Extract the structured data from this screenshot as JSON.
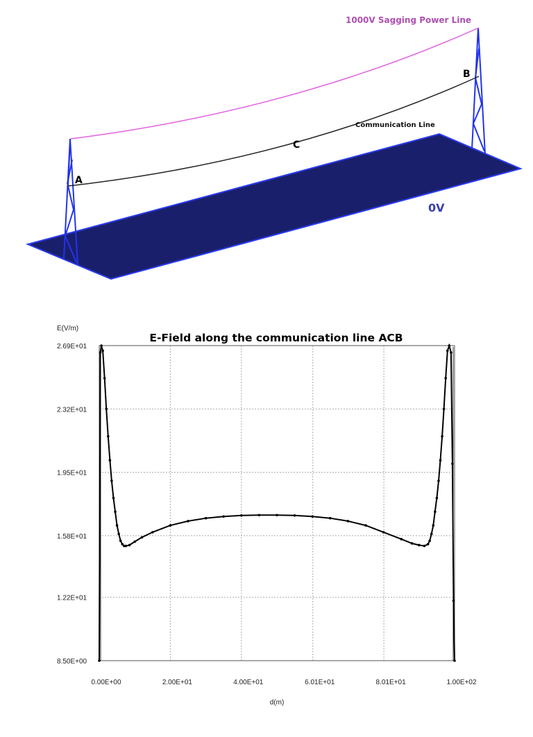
{
  "scene": {
    "power_line_label": "1000V Sagging Power Line",
    "communication_line_label": "Communication Line",
    "point_a": "A",
    "point_b": "B",
    "point_c": "C",
    "ground_label": "0V",
    "colors": {
      "power_line": "#e060e0",
      "power_label": "#b050b0",
      "communication_line": "#222222",
      "tower": "#2233ee",
      "ground_plane": "#1a1f6b",
      "ground_edge": "#2a3cf0",
      "ground_label": "#3a3fb0"
    }
  },
  "chart_data": {
    "type": "line",
    "title": "E-Field along the communication line ACB",
    "xlabel": "d(m)",
    "ylabel": "E(V/m)",
    "x_ticks": [
      "0.00E+00",
      "2.00E+01",
      "4.00E+01",
      "6.01E+01",
      "8.01E+01",
      "1.00E+02"
    ],
    "x_tick_values": [
      0,
      20,
      40,
      60.1,
      80.1,
      100
    ],
    "y_ticks": [
      "2.69E+01",
      "2.32E+01",
      "1.95E+01",
      "1.58E+01",
      "1.22E+01",
      "8.50E+00"
    ],
    "y_tick_values": [
      26.9,
      23.2,
      19.5,
      15.8,
      12.2,
      8.5
    ],
    "xlim": [
      0,
      100
    ],
    "ylim": [
      8.5,
      26.9
    ],
    "grid": true,
    "legend": "none",
    "series": [
      {
        "name": "E-Field",
        "x": [
          0,
          0.3,
          0.6,
          1.0,
          1.5,
          2.0,
          2.5,
          3.0,
          3.5,
          4.0,
          4.5,
          5.0,
          5.5,
          6.0,
          6.5,
          7.0,
          7.5,
          8.5,
          10,
          12,
          15,
          20,
          25,
          30,
          35,
          40,
          45,
          50,
          55,
          60,
          65,
          70,
          75,
          80,
          85,
          88,
          90,
          91.5,
          92.5,
          93,
          93.5,
          94,
          94.5,
          95,
          95.5,
          96,
          96.5,
          97,
          97.5,
          98,
          98.5,
          99.0,
          99.4,
          99.7,
          100
        ],
        "y": [
          8.5,
          26.5,
          26.9,
          26.6,
          25.0,
          23.2,
          21.6,
          20.2,
          19.0,
          18.0,
          17.2,
          16.4,
          15.9,
          15.5,
          15.3,
          15.2,
          15.2,
          15.25,
          15.45,
          15.7,
          16.0,
          16.4,
          16.65,
          16.82,
          16.92,
          16.98,
          17.0,
          17.0,
          16.98,
          16.92,
          16.82,
          16.65,
          16.4,
          16.0,
          15.6,
          15.35,
          15.25,
          15.2,
          15.3,
          15.5,
          15.9,
          16.4,
          17.2,
          18.0,
          19.0,
          20.2,
          21.6,
          23.2,
          25.0,
          26.6,
          26.9,
          26.5,
          20.0,
          12.0,
          8.5
        ]
      }
    ]
  }
}
